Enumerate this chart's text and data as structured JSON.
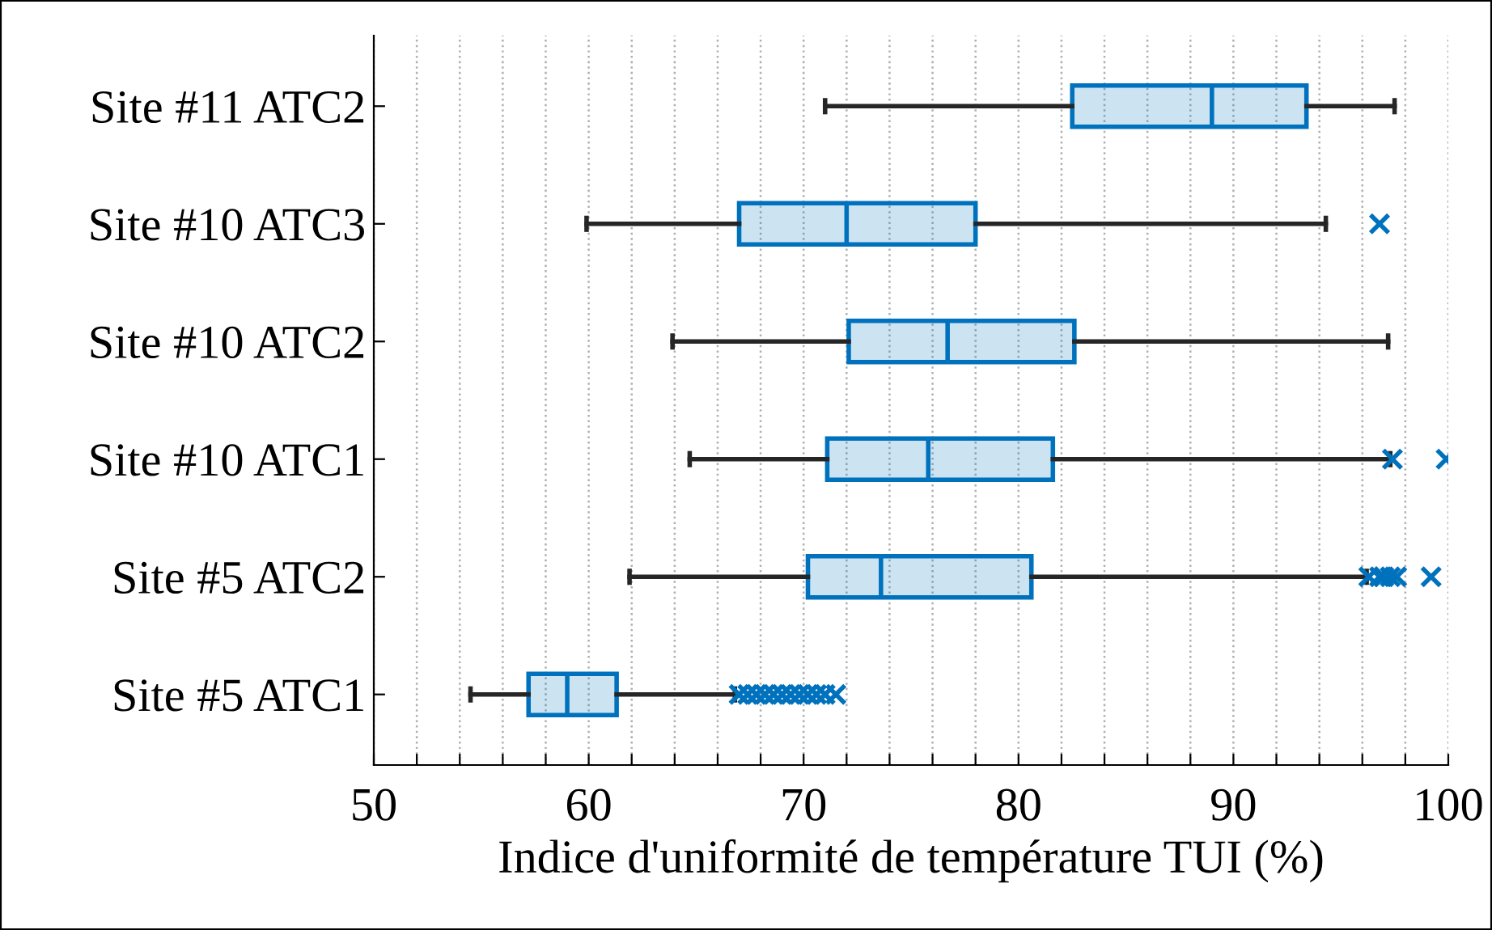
{
  "chart_data": {
    "type": "box",
    "orientation": "horizontal",
    "xlabel": "Indice d'uniformité de température TUI (%)",
    "categories": [
      "Site #11 ATC2",
      "Site #10 ATC3",
      "Site #10 ATC2",
      "Site #10 ATC1",
      "Site #5 ATC2",
      "Site #5 ATC1"
    ],
    "boxes": [
      {
        "low": 71.0,
        "q1": 82.5,
        "median": 89.0,
        "q3": 93.4,
        "high": 97.5
      },
      {
        "low": 59.9,
        "q1": 67.0,
        "median": 72.0,
        "q3": 78.0,
        "high": 94.3,
        "outliers": [
          96.8
        ]
      },
      {
        "low": 63.9,
        "q1": 72.1,
        "median": 76.7,
        "q3": 82.6,
        "high": 97.2
      },
      {
        "low": 64.7,
        "q1": 71.1,
        "median": 75.8,
        "q3": 81.6,
        "high": 97.3,
        "outliers": [
          97.4,
          99.9
        ]
      },
      {
        "low": 61.9,
        "q1": 70.2,
        "median": 73.6,
        "q3": 80.6,
        "high": 96.2,
        "outliers": [
          96.3,
          96.8,
          97.0,
          97.3,
          97.6,
          99.2
        ]
      },
      {
        "low": 54.5,
        "q1": 57.2,
        "median": 59.0,
        "q3": 61.3,
        "high": 66.8,
        "outliers": [
          67.0,
          67.4,
          67.8,
          68.2,
          68.6,
          69.0,
          69.4,
          69.8,
          70.2,
          70.6,
          71.0,
          71.5
        ]
      }
    ],
    "color": "#0072bd",
    "marker": "cross",
    "xlim": [
      50,
      100
    ],
    "xticks": [
      50,
      {
        "value": 52,
        "label": null
      },
      {
        "value": 54,
        "label": null
      },
      {
        "value": 56,
        "label": null
      },
      {
        "value": 58,
        "label": null
      },
      60,
      {
        "value": 62,
        "label": null
      },
      {
        "value": 64,
        "label": null
      },
      {
        "value": 66,
        "label": null
      },
      {
        "value": 68,
        "label": null
      },
      70,
      {
        "value": 72,
        "label": null
      },
      {
        "value": 74,
        "label": null
      },
      {
        "value": 76,
        "label": null
      },
      {
        "value": 78,
        "label": null
      },
      80,
      {
        "value": 82,
        "label": null
      },
      {
        "value": 84,
        "label": null
      },
      {
        "value": 86,
        "label": null
      },
      {
        "value": 88,
        "label": null
      },
      90,
      {
        "value": 92,
        "label": null
      },
      {
        "value": 94,
        "label": null
      },
      {
        "value": 96,
        "label": null
      },
      {
        "value": 98,
        "label": null
      },
      100
    ],
    "grid": "x"
  }
}
